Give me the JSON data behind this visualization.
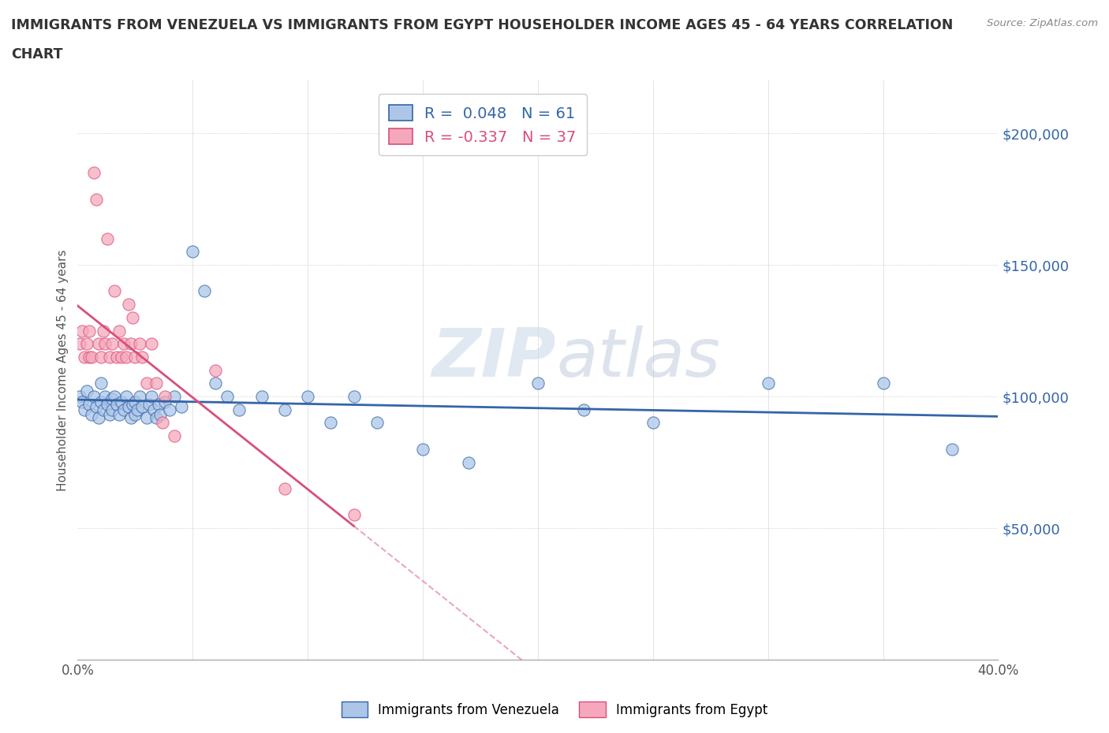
{
  "title_line1": "IMMIGRANTS FROM VENEZUELA VS IMMIGRANTS FROM EGYPT HOUSEHOLDER INCOME AGES 45 - 64 YEARS CORRELATION",
  "title_line2": "CHART",
  "source": "Source: ZipAtlas.com",
  "ylabel": "Householder Income Ages 45 - 64 years",
  "legend_label1": "Immigrants from Venezuela",
  "legend_label2": "Immigrants from Egypt",
  "R1": 0.048,
  "N1": 61,
  "R2": -0.337,
  "N2": 37,
  "color_venezuela": "#adc6e8",
  "color_egypt": "#f5a8bc",
  "color_venezuela_line": "#3465a8",
  "color_egypt_line": "#d94f7a",
  "xlim": [
    0.0,
    0.4
  ],
  "ylim": [
    0,
    220000
  ],
  "venezuela_x": [
    0.001,
    0.002,
    0.003,
    0.004,
    0.005,
    0.006,
    0.007,
    0.008,
    0.009,
    0.01,
    0.01,
    0.011,
    0.012,
    0.013,
    0.014,
    0.015,
    0.015,
    0.016,
    0.017,
    0.018,
    0.019,
    0.02,
    0.021,
    0.022,
    0.023,
    0.024,
    0.025,
    0.025,
    0.026,
    0.027,
    0.028,
    0.03,
    0.031,
    0.032,
    0.033,
    0.034,
    0.035,
    0.036,
    0.038,
    0.04,
    0.042,
    0.045,
    0.05,
    0.055,
    0.06,
    0.065,
    0.07,
    0.08,
    0.09,
    0.1,
    0.11,
    0.12,
    0.13,
    0.15,
    0.17,
    0.2,
    0.22,
    0.25,
    0.3,
    0.35,
    0.38
  ],
  "venezuela_y": [
    100000,
    98000,
    95000,
    102000,
    97000,
    93000,
    100000,
    96000,
    92000,
    105000,
    98000,
    95000,
    100000,
    97000,
    93000,
    99000,
    95000,
    100000,
    97000,
    93000,
    98000,
    95000,
    100000,
    96000,
    92000,
    97000,
    93000,
    98000,
    95000,
    100000,
    96000,
    92000,
    97000,
    100000,
    95000,
    92000,
    97000,
    93000,
    98000,
    95000,
    100000,
    96000,
    155000,
    140000,
    105000,
    100000,
    95000,
    100000,
    95000,
    100000,
    90000,
    100000,
    90000,
    80000,
    75000,
    105000,
    95000,
    90000,
    105000,
    105000,
    80000
  ],
  "egypt_x": [
    0.001,
    0.002,
    0.003,
    0.004,
    0.005,
    0.005,
    0.006,
    0.007,
    0.008,
    0.009,
    0.01,
    0.011,
    0.012,
    0.013,
    0.014,
    0.015,
    0.016,
    0.017,
    0.018,
    0.019,
    0.02,
    0.021,
    0.022,
    0.023,
    0.024,
    0.025,
    0.027,
    0.028,
    0.03,
    0.032,
    0.034,
    0.037,
    0.038,
    0.042,
    0.06,
    0.09,
    0.12
  ],
  "egypt_y": [
    120000,
    125000,
    115000,
    120000,
    115000,
    125000,
    115000,
    185000,
    175000,
    120000,
    115000,
    125000,
    120000,
    160000,
    115000,
    120000,
    140000,
    115000,
    125000,
    115000,
    120000,
    115000,
    135000,
    120000,
    130000,
    115000,
    120000,
    115000,
    105000,
    120000,
    105000,
    90000,
    100000,
    85000,
    110000,
    65000,
    55000
  ],
  "watermark_zip": "ZIP",
  "watermark_atlas": "atlas",
  "xtick_labels": [
    "0.0%",
    "40.0%"
  ],
  "xtick_values": [
    0.0,
    0.4
  ],
  "ytick_labels": [
    "$50,000",
    "$100,000",
    "$150,000",
    "$200,000"
  ],
  "ytick_values": [
    50000,
    100000,
    150000,
    200000
  ],
  "ytick_color": "#3465a8"
}
